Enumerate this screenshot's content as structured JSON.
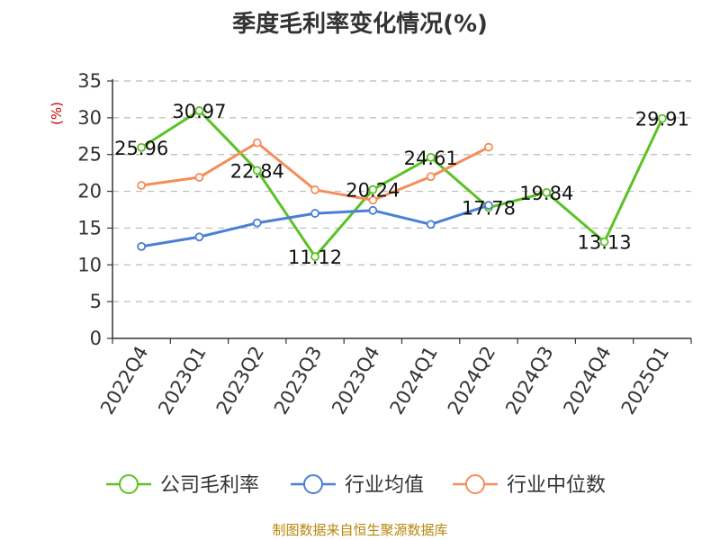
{
  "title": "季度毛利率变化情况(%)",
  "source": "制图数据来自恒生聚源数据库",
  "chart_data": {
    "type": "line",
    "title": "季度毛利率变化情况(%)",
    "ylabel": "(%)",
    "xlabel": "",
    "ylim": [
      0,
      35
    ],
    "yticks": [
      0,
      5,
      10,
      15,
      20,
      25,
      30,
      35
    ],
    "grid": true,
    "legend_position": "bottom",
    "categories": [
      "2022Q4",
      "2023Q1",
      "2023Q2",
      "2023Q3",
      "2023Q4",
      "2024Q1",
      "2024Q2",
      "2024Q3",
      "2024Q4",
      "2025Q1"
    ],
    "series": [
      {
        "name": "公司毛利率",
        "color": "#5bc225",
        "values": [
          25.96,
          30.97,
          22.84,
          11.12,
          20.24,
          24.61,
          17.78,
          19.84,
          13.13,
          29.91
        ],
        "labels": [
          "25.96",
          "30.97",
          "22.84",
          "11.12",
          "20.24",
          "24.61",
          "17.78",
          "19.84",
          "13.13",
          "29.91"
        ]
      },
      {
        "name": "行业均值",
        "color": "#4a7fd6",
        "values": [
          12.5,
          13.8,
          15.7,
          17.0,
          17.4,
          15.5,
          18.1,
          null,
          null,
          null
        ]
      },
      {
        "name": "行业中位数",
        "color": "#f58d5b",
        "values": [
          20.8,
          21.9,
          26.6,
          20.2,
          18.8,
          22.0,
          26.0,
          null,
          null,
          null
        ]
      }
    ]
  }
}
